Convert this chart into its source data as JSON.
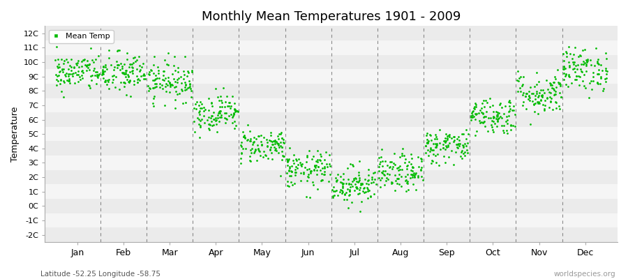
{
  "title": "Monthly Mean Temperatures 1901 - 2009",
  "ylabel": "Temperature",
  "xlabel_labels": [
    "Jan",
    "Feb",
    "Mar",
    "Apr",
    "May",
    "Jun",
    "Jul",
    "Aug",
    "Sep",
    "Oct",
    "Nov",
    "Dec"
  ],
  "ytick_labels": [
    "-2C",
    "-1C",
    "0C",
    "1C",
    "2C",
    "3C",
    "4C",
    "5C",
    "6C",
    "7C",
    "8C",
    "9C",
    "10C",
    "11C",
    "12C"
  ],
  "ytick_values": [
    -2,
    -1,
    0,
    1,
    2,
    3,
    4,
    5,
    6,
    7,
    8,
    9,
    10,
    11,
    12
  ],
  "ylim": [
    -2.5,
    12.5
  ],
  "legend_label": "Mean Temp",
  "dot_color": "#00BB00",
  "dot_size": 4,
  "bg_color": "#FFFFFF",
  "band_color_odd": "#EBEBEB",
  "band_color_even": "#F5F5F5",
  "dashed_line_color": "#888888",
  "subtitle": "Latitude -52.25 Longitude -58.75",
  "watermark": "worldspecies.org",
  "monthly_means": [
    9.3,
    9.2,
    8.7,
    6.5,
    4.2,
    2.5,
    1.5,
    2.3,
    4.2,
    6.3,
    7.8,
    9.5
  ],
  "monthly_stds": [
    0.65,
    0.75,
    0.7,
    0.65,
    0.6,
    0.65,
    0.65,
    0.65,
    0.6,
    0.65,
    0.75,
    0.75
  ],
  "n_years": 109,
  "seed": 42
}
